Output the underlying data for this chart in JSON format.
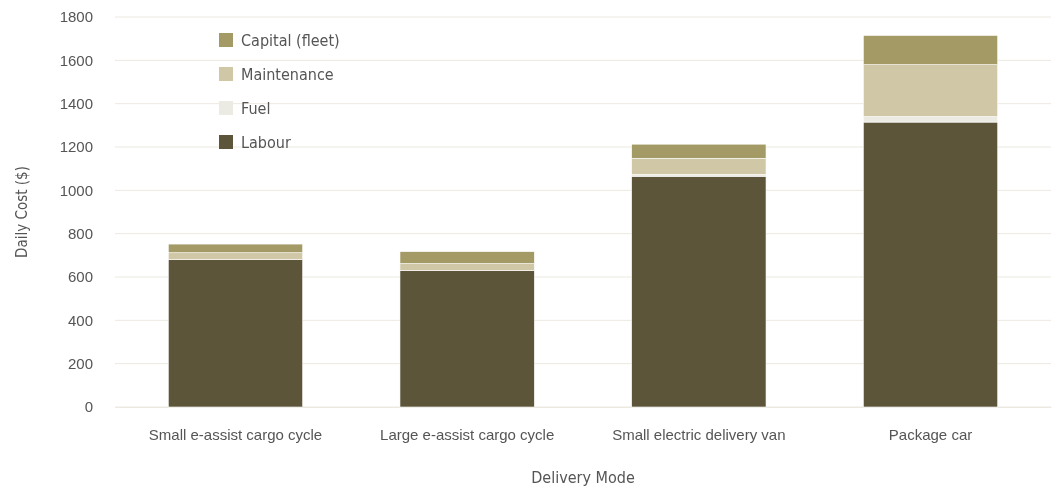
{
  "chart_data": {
    "type": "bar",
    "stacked": true,
    "xlabel": "Delivery Mode",
    "ylabel": "Daily Cost ($)",
    "categories": [
      "Small e-assist cargo cycle",
      "Large e-assist cargo cycle",
      "Small electric delivery van",
      "Package car"
    ],
    "series": [
      {
        "name": "Labour",
        "color": "#5c5539",
        "values": [
          680,
          630,
          1065,
          1315
        ]
      },
      {
        "name": "Fuel",
        "color": "#ecebe3",
        "values": [
          null,
          null,
          8,
          25
        ]
      },
      {
        "name": "Maintenance",
        "color": "#cfc7a6",
        "values": [
          32,
          32,
          75,
          240
        ]
      },
      {
        "name": "Capital (fleet)",
        "color": "#a39a65",
        "values": [
          40,
          55,
          65,
          135
        ]
      }
    ],
    "ylim": [
      0,
      1800
    ],
    "yticks": [
      0,
      200,
      400,
      600,
      800,
      1000,
      1200,
      1400,
      1600,
      1800
    ],
    "grid": "y",
    "legend": "top left"
  }
}
